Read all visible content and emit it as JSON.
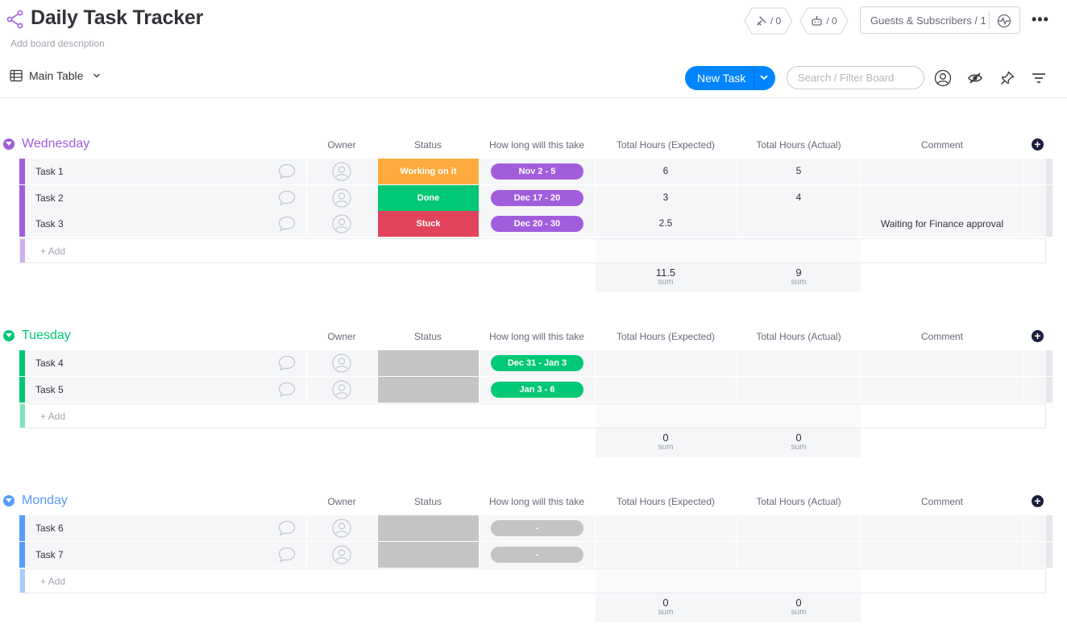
{
  "board": {
    "title": "Daily Task Tracker",
    "description": "Add board description",
    "activity_count": "/ 0",
    "automations_count": "/ 0",
    "guests_label": "Guests & Subscribers / 1"
  },
  "toolbar": {
    "view_name": "Main Table",
    "new_task_label": "New Task",
    "search_placeholder": "Search / Filter Board"
  },
  "columns": [
    "Owner",
    "Status",
    "How long will this take",
    "Total Hours (Expected)",
    "Total Hours (Actual)",
    "Comment"
  ],
  "add_item_label": "+ Add",
  "sum_label": "sum",
  "colors": {
    "purple": "#a25ddc",
    "green": "#00c875",
    "blue": "#579bfc",
    "orange": "#fdab3d",
    "red": "#e2445c",
    "grey": "#c4c4c4",
    "primary": "#0085ff"
  },
  "groups": [
    {
      "title": "Wednesday",
      "color": "#a25ddc",
      "items": [
        {
          "name": "Task 1",
          "status": "Working on it",
          "status_color": "#fdab3d",
          "timeline": "Nov 2 - 5",
          "timeline_color": "#a25ddc",
          "expected": "6",
          "actual": "5",
          "comment": ""
        },
        {
          "name": "Task 2",
          "status": "Done",
          "status_color": "#00c875",
          "timeline": "Dec 17 - 20",
          "timeline_color": "#a25ddc",
          "expected": "3",
          "actual": "4",
          "comment": ""
        },
        {
          "name": "Task 3",
          "status": "Stuck",
          "status_color": "#e2445c",
          "timeline": "Dec 20 - 30",
          "timeline_color": "#a25ddc",
          "expected": "2.5",
          "actual": "",
          "comment": "Waiting for Finance approval"
        }
      ],
      "sum_expected": "11.5",
      "sum_actual": "9"
    },
    {
      "title": "Tuesday",
      "color": "#00c875",
      "items": [
        {
          "name": "Task 4",
          "status": "",
          "status_color": "#c4c4c4",
          "timeline": "Dec 31 - Jan 3",
          "timeline_color": "#00c875",
          "expected": "",
          "actual": "",
          "comment": ""
        },
        {
          "name": "Task 5",
          "status": "",
          "status_color": "#c4c4c4",
          "timeline": "Jan 3 - 6",
          "timeline_color": "#00c875",
          "expected": "",
          "actual": "",
          "comment": ""
        }
      ],
      "sum_expected": "0",
      "sum_actual": "0"
    },
    {
      "title": "Monday",
      "color": "#579bfc",
      "items": [
        {
          "name": "Task 6",
          "status": "",
          "status_color": "#c4c4c4",
          "timeline": "-",
          "timeline_color": "#c4c4c4",
          "expected": "",
          "actual": "",
          "comment": ""
        },
        {
          "name": "Task 7",
          "status": "",
          "status_color": "#c4c4c4",
          "timeline": "-",
          "timeline_color": "#c4c4c4",
          "expected": "",
          "actual": "",
          "comment": ""
        }
      ],
      "sum_expected": "0",
      "sum_actual": "0"
    }
  ]
}
